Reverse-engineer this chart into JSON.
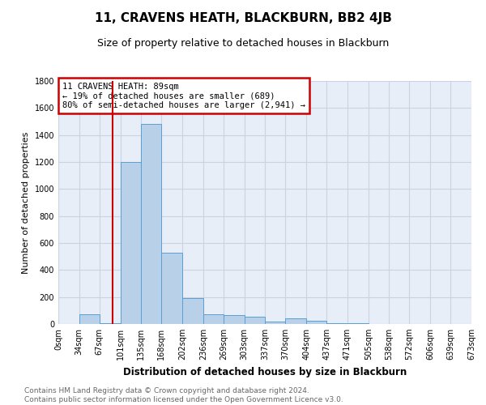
{
  "title": "11, CRAVENS HEATH, BLACKBURN, BB2 4JB",
  "subtitle": "Size of property relative to detached houses in Blackburn",
  "xlabel": "Distribution of detached houses by size in Blackburn",
  "ylabel": "Number of detached properties",
  "footer_line1": "Contains HM Land Registry data © Crown copyright and database right 2024.",
  "footer_line2": "Contains public sector information licensed under the Open Government Licence v3.0.",
  "annotation_line1": "11 CRAVENS HEATH: 89sqm",
  "annotation_line2": "← 19% of detached houses are smaller (689)",
  "annotation_line3": "80% of semi-detached houses are larger (2,941) →",
  "property_size": 89,
  "bar_edges": [
    0,
    34,
    67,
    101,
    135,
    168,
    202,
    236,
    269,
    303,
    337,
    370,
    404,
    437,
    471,
    505,
    538,
    572,
    606,
    639,
    673
  ],
  "bar_heights": [
    0,
    75,
    5,
    1200,
    1480,
    530,
    190,
    75,
    65,
    55,
    20,
    40,
    25,
    5,
    5,
    0,
    0,
    0,
    0,
    0
  ],
  "bar_color": "#b8d0e8",
  "bar_edge_color": "#5a9fd4",
  "grid_color": "#c8d4e4",
  "annotation_box_color": "#cc0000",
  "vline_color": "#cc0000",
  "ylim_max": 1800,
  "yticks": [
    0,
    200,
    400,
    600,
    800,
    1000,
    1200,
    1400,
    1600,
    1800
  ],
  "bg_color": "#e8eef8",
  "title_fontsize": 11,
  "subtitle_fontsize": 9,
  "ylabel_fontsize": 8,
  "xlabel_fontsize": 8.5,
  "tick_fontsize": 7,
  "annotation_fontsize": 7.5,
  "footer_fontsize": 6.5
}
